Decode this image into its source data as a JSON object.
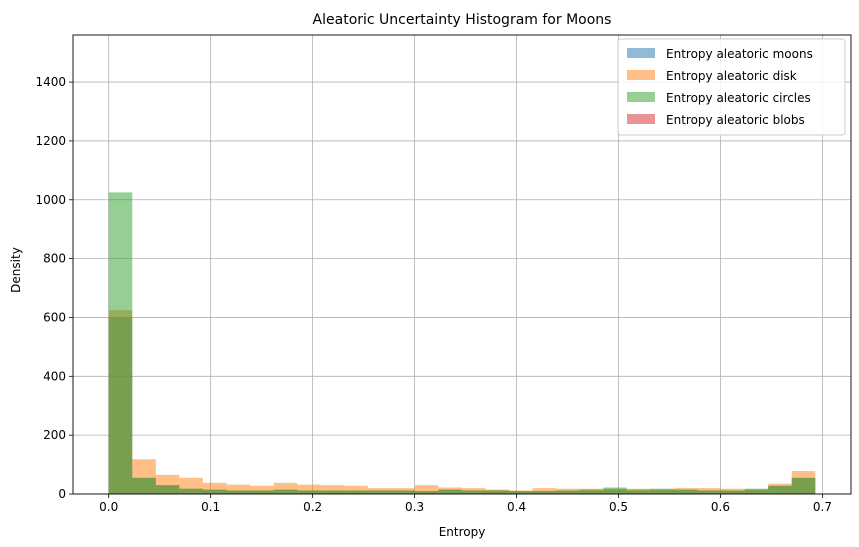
{
  "chart_data": {
    "type": "bar",
    "title": "Aleatoric Uncertainty Histogram for Moons",
    "xlabel": "Entropy",
    "ylabel": "Density",
    "xlim": [
      -0.035,
      0.728
    ],
    "ylim": [
      0,
      1560
    ],
    "xticks": [
      0.0,
      0.1,
      0.2,
      0.3,
      0.4,
      0.5,
      0.6,
      0.7
    ],
    "xtick_labels": [
      "0.0",
      "0.1",
      "0.2",
      "0.3",
      "0.4",
      "0.5",
      "0.6",
      "0.7"
    ],
    "yticks": [
      0,
      200,
      400,
      600,
      800,
      1000,
      1200,
      1400
    ],
    "ytick_labels": [
      "0",
      "200",
      "400",
      "600",
      "800",
      "1000",
      "1200",
      "1400"
    ],
    "grid": true,
    "legend_position": "top-right",
    "bin_start": 0.0,
    "bin_width": 0.0231,
    "series": [
      {
        "name": "Entropy aleatoric moons",
        "color": "#1f77b4",
        "values": [
          600,
          55,
          30,
          18,
          15,
          12,
          12,
          15,
          12,
          12,
          12,
          12,
          12,
          10,
          15,
          12,
          12,
          10,
          10,
          12,
          12,
          15,
          12,
          15,
          15,
          12,
          12,
          15,
          28,
          55
        ]
      },
      {
        "name": "Entropy aleatoric disk",
        "color": "#ff7f0e",
        "values": [
          625,
          118,
          65,
          55,
          38,
          32,
          28,
          38,
          32,
          30,
          28,
          20,
          20,
          30,
          22,
          20,
          15,
          12,
          20,
          18,
          18,
          18,
          18,
          15,
          20,
          20,
          18,
          15,
          35,
          78
        ]
      },
      {
        "name": "Entropy aleatoric circles",
        "color": "#2ca02c",
        "values": [
          1025,
          55,
          30,
          18,
          15,
          12,
          12,
          15,
          12,
          12,
          12,
          12,
          12,
          10,
          15,
          12,
          12,
          10,
          10,
          12,
          15,
          22,
          15,
          18,
          15,
          12,
          12,
          18,
          28,
          55
        ]
      },
      {
        "name": "Entropy aleatoric blobs",
        "color": "#d62728",
        "values": [
          0,
          0,
          0,
          0,
          0,
          0,
          0,
          0,
          0,
          0,
          0,
          0,
          0,
          0,
          0,
          0,
          0,
          0,
          0,
          0,
          0,
          0,
          0,
          0,
          0,
          0,
          0,
          0,
          0,
          0
        ]
      }
    ]
  }
}
